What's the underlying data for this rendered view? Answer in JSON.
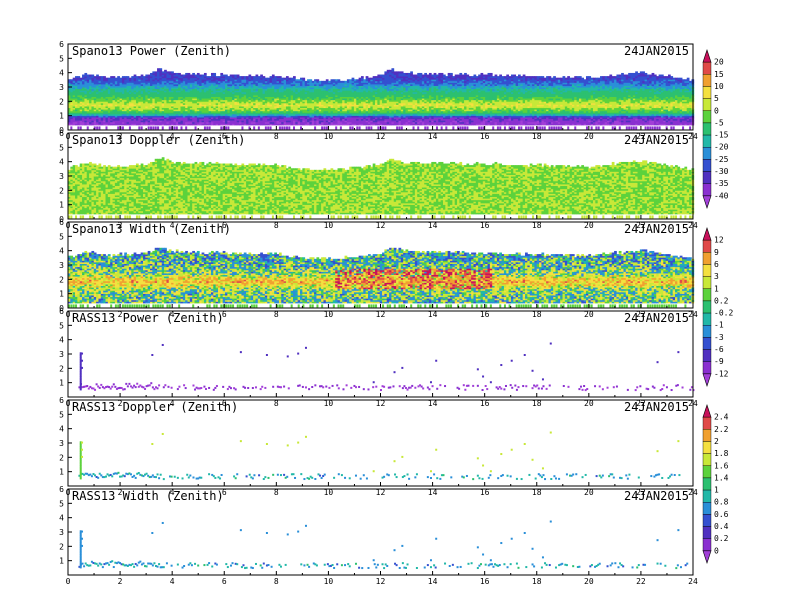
{
  "chart_data": [
    {
      "type": "heatmap",
      "title": "Spano13 Power (Zenith)",
      "date": "24JAN2015",
      "x_ticks": [
        "0",
        "2",
        "4",
        "6",
        "8",
        "10",
        "12",
        "14",
        "16",
        "18",
        "20",
        "22",
        "24"
      ],
      "y_ticks": [
        "0",
        "1",
        "2",
        "3",
        "4",
        "5",
        "6"
      ],
      "xlim": [
        0,
        24
      ],
      "ylim": [
        0,
        6
      ],
      "profile": "dense",
      "colorbar": {
        "labels": [
          "20",
          "15",
          "10",
          "5",
          "0",
          "-5",
          "-15",
          "-20",
          "-25",
          "-30",
          "-35",
          "-40"
        ],
        "colors": [
          "#c8115a",
          "#e04a48",
          "#f0a030",
          "#f4e040",
          "#c8e838",
          "#5cd23c",
          "#2cc070",
          "#22b8a8",
          "#2a8fd8",
          "#3450d0",
          "#5030c0",
          "#8a30d0",
          "#a23fd8"
        ]
      },
      "top_height_by_hour": [
        [
          0,
          3.5
        ],
        [
          0.8,
          3.9
        ],
        [
          1.5,
          3.6
        ],
        [
          3,
          3.8
        ],
        [
          3.5,
          4.2
        ],
        [
          4,
          3.9
        ],
        [
          6,
          3.8
        ],
        [
          8,
          3.7
        ],
        [
          9.5,
          3.4
        ],
        [
          11,
          3.5
        ],
        [
          12,
          3.8
        ],
        [
          12.3,
          4.2
        ],
        [
          13,
          3.9
        ],
        [
          16,
          3.8
        ],
        [
          18,
          3.7
        ],
        [
          20,
          3.6
        ],
        [
          22,
          4.0
        ],
        [
          24,
          3.4
        ]
      ],
      "band_value_by_height": [
        [
          0.3,
          -40
        ],
        [
          0.8,
          -35
        ],
        [
          1.2,
          -5
        ],
        [
          1.7,
          5
        ],
        [
          2.2,
          -5
        ],
        [
          2.7,
          -15
        ],
        [
          3.2,
          -25
        ],
        [
          3.6,
          -30
        ]
      ]
    },
    {
      "type": "heatmap",
      "title": "Spano13 Doppler (Zenith)",
      "date": "24JAN2015",
      "x_ticks": [
        "0",
        "2",
        "4",
        "6",
        "8",
        "10",
        "12",
        "14",
        "16",
        "18",
        "20",
        "22",
        "24"
      ],
      "y_ticks": [
        "0",
        "1",
        "2",
        "3",
        "4",
        "5",
        "6"
      ],
      "xlim": [
        0,
        24
      ],
      "ylim": [
        0,
        6
      ],
      "profile": "dense",
      "colorbar": {
        "labels": [
          "20",
          "15",
          "10",
          "5",
          "0",
          "-5",
          "-15",
          "-20",
          "-25",
          "-30",
          "-35",
          "-40"
        ],
        "colors": [
          "#c8115a",
          "#e04a48",
          "#f0a030",
          "#f4e040",
          "#c8e838",
          "#5cd23c",
          "#2cc070",
          "#22b8a8",
          "#2a8fd8",
          "#3450d0",
          "#5030c0",
          "#8a30d0",
          "#a23fd8"
        ]
      },
      "top_height_by_hour": [
        [
          0,
          3.5
        ],
        [
          0.8,
          3.9
        ],
        [
          1.5,
          3.6
        ],
        [
          3,
          3.8
        ],
        [
          3.5,
          4.2
        ],
        [
          4,
          3.9
        ],
        [
          6,
          3.8
        ],
        [
          8,
          3.7
        ],
        [
          9.5,
          3.4
        ],
        [
          11,
          3.5
        ],
        [
          12,
          3.8
        ],
        [
          12.3,
          4.2
        ],
        [
          13,
          3.9
        ],
        [
          16,
          3.8
        ],
        [
          18,
          3.7
        ],
        [
          20,
          3.6
        ],
        [
          22,
          4.0
        ],
        [
          24,
          3.4
        ]
      ],
      "band_value_by_height": [
        [
          0.5,
          0
        ],
        [
          1.5,
          0
        ],
        [
          2.5,
          0
        ],
        [
          3.5,
          0
        ]
      ]
    },
    {
      "type": "heatmap",
      "title": "Spano13 Width (Zenith)",
      "date": "24JAN2015",
      "x_ticks": [
        "0",
        "2",
        "4",
        "6",
        "8",
        "10",
        "12",
        "14",
        "16",
        "18",
        "20",
        "22",
        "24"
      ],
      "y_ticks": [
        "0",
        "1",
        "2",
        "3",
        "4",
        "5",
        "6"
      ],
      "xlim": [
        0,
        24
      ],
      "ylim": [
        0,
        6
      ],
      "profile": "dense",
      "colorbar": {
        "labels": [
          "12",
          "9",
          "6",
          "3",
          "1",
          "0.2",
          "-0.2",
          "-1",
          "-3",
          "-6",
          "-9",
          "-12"
        ],
        "colors": [
          "#c8115a",
          "#e04a48",
          "#f0a030",
          "#f4e040",
          "#c8e838",
          "#5cd23c",
          "#2cc070",
          "#22b8a8",
          "#2a8fd8",
          "#3450d0",
          "#5030c0",
          "#8a30d0",
          "#a23fd8"
        ]
      },
      "top_height_by_hour": [
        [
          0,
          3.5
        ],
        [
          0.8,
          3.9
        ],
        [
          1.5,
          3.6
        ],
        [
          3,
          3.8
        ],
        [
          3.5,
          4.2
        ],
        [
          4,
          3.9
        ],
        [
          6,
          3.8
        ],
        [
          8,
          3.7
        ],
        [
          9.5,
          3.4
        ],
        [
          11,
          3.5
        ],
        [
          12,
          3.8
        ],
        [
          12.3,
          4.2
        ],
        [
          13,
          3.9
        ],
        [
          16,
          3.8
        ],
        [
          18,
          3.7
        ],
        [
          20,
          3.6
        ],
        [
          22,
          4.0
        ],
        [
          24,
          3.4
        ]
      ],
      "band_value_by_height": [
        [
          0.5,
          0.2
        ],
        [
          1.2,
          1
        ],
        [
          1.8,
          6
        ],
        [
          2.4,
          1
        ],
        [
          3.0,
          -0.2
        ],
        [
          3.5,
          -1
        ]
      ],
      "hot_region": {
        "x": [
          10.2,
          16.2
        ],
        "y": [
          1.3,
          2.7
        ],
        "values": [
          9,
          12,
          6
        ]
      }
    },
    {
      "type": "scatter",
      "title": "RASS13 Power (Zenith)",
      "date": "24JAN2015",
      "x_ticks": [
        "0",
        "2",
        "4",
        "6",
        "8",
        "10",
        "12",
        "14",
        "16",
        "18",
        "20",
        "22",
        "24"
      ],
      "y_ticks": [
        "1",
        "2",
        "3",
        "4",
        "5",
        "6"
      ],
      "xlim": [
        0,
        24
      ],
      "ylim": [
        0,
        6
      ],
      "profile": "sparse",
      "colorbar": {
        "labels": [
          "12",
          "9",
          "6",
          "3",
          "1",
          "0.2",
          "-0.2",
          "-1",
          "-3",
          "-6",
          "-9",
          "-12"
        ],
        "colors": [
          "#c8115a",
          "#e04a48",
          "#f0a030",
          "#f4e040",
          "#c8e838",
          "#5cd23c",
          "#2cc070",
          "#22b8a8",
          "#2a8fd8",
          "#3450d0",
          "#5030c0",
          "#8a30d0",
          "#a23fd8"
        ]
      },
      "points": [
        [
          0.5,
          3.1
        ],
        [
          0.5,
          2.6
        ],
        [
          0.5,
          2.1
        ],
        [
          3.2,
          3.0
        ],
        [
          3.6,
          3.7
        ],
        [
          6.6,
          3.2
        ],
        [
          7.6,
          3.0
        ],
        [
          8.4,
          2.9
        ],
        [
          8.8,
          3.1
        ],
        [
          9.1,
          3.5
        ],
        [
          11.7,
          1.1
        ],
        [
          12.5,
          1.8
        ],
        [
          12.8,
          2.1
        ],
        [
          13.9,
          1.1
        ],
        [
          14.1,
          2.6
        ],
        [
          15.7,
          2.0
        ],
        [
          15.9,
          1.5
        ],
        [
          16.2,
          1.1
        ],
        [
          16.6,
          2.3
        ],
        [
          17.0,
          2.6
        ],
        [
          17.5,
          3.0
        ],
        [
          17.8,
          1.9
        ],
        [
          18.2,
          1.3
        ],
        [
          18.5,
          3.8
        ],
        [
          22.6,
          2.5
        ],
        [
          23.4,
          3.2
        ]
      ]
    },
    {
      "type": "scatter",
      "title": "RASS13 Doppler (Zenith)",
      "date": "24JAN2015",
      "x_ticks": [
        "0",
        "2",
        "4",
        "6",
        "8",
        "10",
        "12",
        "14",
        "16",
        "18",
        "20",
        "22",
        "24"
      ],
      "y_ticks": [
        "1",
        "2",
        "3",
        "4",
        "5",
        "6"
      ],
      "xlim": [
        0,
        24
      ],
      "ylim": [
        0,
        6
      ],
      "profile": "sparse",
      "colorbar": {
        "labels": [
          "2.4",
          "2.2",
          "2",
          "1.8",
          "1.6",
          "1.4",
          "1",
          "0.8",
          "0.6",
          "0.4",
          "0.2",
          "0"
        ],
        "colors": [
          "#c8115a",
          "#e04a48",
          "#f0a030",
          "#f4e040",
          "#c8e838",
          "#5cd23c",
          "#2cc070",
          "#22b8a8",
          "#2a8fd8",
          "#3450d0",
          "#5030c0",
          "#8a30d0",
          "#a23fd8"
        ]
      },
      "points": [
        [
          0.5,
          3.1
        ],
        [
          0.5,
          2.6
        ],
        [
          0.5,
          2.1
        ],
        [
          3.2,
          3.0
        ],
        [
          3.6,
          3.7
        ],
        [
          6.6,
          3.2
        ],
        [
          7.6,
          3.0
        ],
        [
          8.4,
          2.9
        ],
        [
          8.8,
          3.1
        ],
        [
          9.1,
          3.5
        ],
        [
          11.7,
          1.1
        ],
        [
          12.5,
          1.8
        ],
        [
          12.8,
          2.1
        ],
        [
          13.9,
          1.1
        ],
        [
          14.1,
          2.6
        ],
        [
          15.7,
          2.0
        ],
        [
          15.9,
          1.5
        ],
        [
          16.2,
          1.1
        ],
        [
          16.6,
          2.3
        ],
        [
          17.0,
          2.6
        ],
        [
          17.5,
          3.0
        ],
        [
          17.8,
          1.9
        ],
        [
          18.2,
          1.3
        ],
        [
          18.5,
          3.8
        ],
        [
          22.6,
          2.5
        ],
        [
          23.4,
          3.2
        ]
      ]
    },
    {
      "type": "scatter",
      "title": "RASS13 Width (Zenith)",
      "date": "24JAN2015",
      "x_ticks": [
        "0",
        "2",
        "4",
        "6",
        "8",
        "10",
        "12",
        "14",
        "16",
        "18",
        "20",
        "22",
        "24"
      ],
      "y_ticks": [
        "1",
        "2",
        "3",
        "4",
        "5",
        "6"
      ],
      "xlim": [
        0,
        24
      ],
      "ylim": [
        0,
        6
      ],
      "profile": "sparse",
      "colorbar": {
        "labels": [
          "2.4",
          "2.2",
          "2",
          "1.8",
          "1.6",
          "1.4",
          "1",
          "0.8",
          "0.6",
          "0.4",
          "0.2",
          "0"
        ],
        "colors": [
          "#c8115a",
          "#e04a48",
          "#f0a030",
          "#f4e040",
          "#c8e838",
          "#5cd23c",
          "#2cc070",
          "#22b8a8",
          "#2a8fd8",
          "#3450d0",
          "#5030c0",
          "#8a30d0",
          "#a23fd8"
        ]
      },
      "points": [
        [
          0.5,
          3.1
        ],
        [
          0.5,
          2.6
        ],
        [
          0.5,
          2.1
        ],
        [
          3.2,
          3.0
        ],
        [
          3.6,
          3.7
        ],
        [
          6.6,
          3.2
        ],
        [
          7.6,
          3.0
        ],
        [
          8.4,
          2.9
        ],
        [
          8.8,
          3.1
        ],
        [
          9.1,
          3.5
        ],
        [
          11.7,
          1.1
        ],
        [
          12.5,
          1.8
        ],
        [
          12.8,
          2.1
        ],
        [
          13.9,
          1.1
        ],
        [
          14.1,
          2.6
        ],
        [
          15.7,
          2.0
        ],
        [
          15.9,
          1.5
        ],
        [
          16.2,
          1.1
        ],
        [
          16.6,
          2.3
        ],
        [
          17.0,
          2.6
        ],
        [
          17.5,
          3.0
        ],
        [
          17.8,
          1.9
        ],
        [
          18.2,
          1.3
        ],
        [
          18.5,
          3.8
        ],
        [
          22.6,
          2.5
        ],
        [
          23.4,
          3.2
        ]
      ]
    }
  ]
}
